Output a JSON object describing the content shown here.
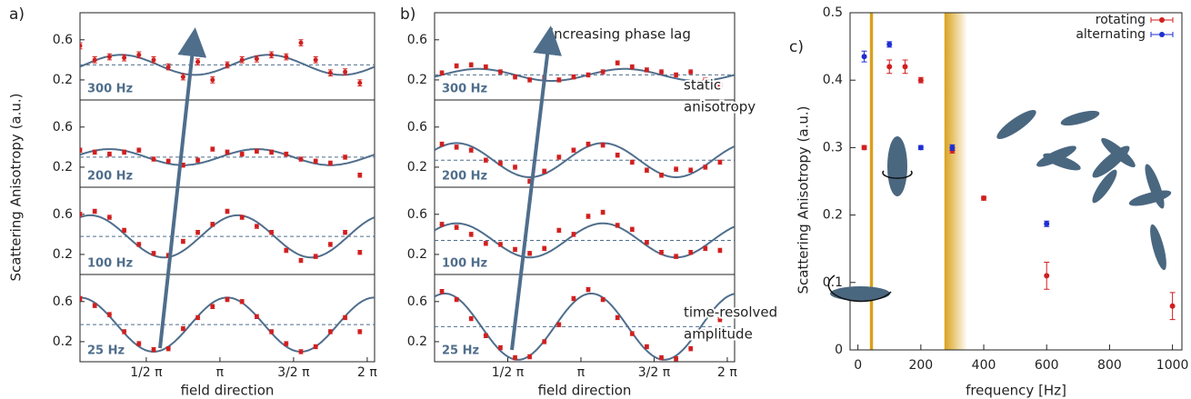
{
  "chart_data": [
    {
      "type": "sine-fit",
      "label": "a)",
      "xlabel": "field direction",
      "ylabel": "Scattering Anisotropy (a.u.)",
      "x": [
        0.05,
        0.15,
        0.25,
        0.35,
        0.45,
        0.55,
        0.65,
        0.75,
        0.85,
        0.95,
        1.05,
        1.15,
        1.25,
        1.35,
        1.45,
        1.55,
        1.65,
        1.75,
        1.85,
        1.95
      ],
      "xlim": [
        0.05,
        2.05
      ],
      "xticks": [
        {
          "value": 0.5,
          "label": "1/2 π"
        },
        {
          "value": 1,
          "label": "π"
        },
        {
          "value": 1.5,
          "label": "3/2 π"
        },
        {
          "value": 2,
          "label": "2 π"
        }
      ],
      "ylim": [
        0,
        0.87
      ],
      "yticks": [
        0.2,
        0.6
      ],
      "color": "#d11f1f",
      "fit_color": "#4f6e8c",
      "fit_period": 1,
      "panels": [
        {
          "name": "300 Hz",
          "values": [
            0.54,
            0.4,
            0.43,
            0.42,
            0.45,
            0.4,
            0.33,
            0.23,
            0.38,
            0.2,
            0.35,
            0.4,
            0.41,
            0.45,
            0.43,
            0.57,
            0.4,
            0.27,
            0.28,
            0.17
          ],
          "yerr": 0.03,
          "fit": {
            "offset": 0.35,
            "amplitude": 0.1,
            "peak": 1.33
          }
        },
        {
          "name": "200 Hz",
          "values": [
            0.37,
            0.35,
            0.33,
            0.35,
            0.37,
            0.28,
            0.26,
            0.22,
            0.27,
            0.38,
            0.35,
            0.33,
            0.36,
            0.35,
            0.33,
            0.28,
            0.26,
            0.24,
            0.3,
            0.12
          ],
          "yerr": 0.02,
          "fit": {
            "offset": 0.3,
            "amplitude": 0.08,
            "peak": 1.25
          }
        },
        {
          "name": "100 Hz",
          "values": [
            0.6,
            0.63,
            0.57,
            0.44,
            0.3,
            0.21,
            0.19,
            0.33,
            0.42,
            0.5,
            0.63,
            0.57,
            0.48,
            0.42,
            0.24,
            0.14,
            0.18,
            0.3,
            0.42,
            0.22
          ],
          "yerr": 0.02,
          "fit": {
            "offset": 0.38,
            "amplitude": 0.21,
            "peak": 1.12
          }
        },
        {
          "name": "25 Hz",
          "values": [
            0.63,
            0.56,
            0.47,
            0.3,
            0.18,
            0.12,
            0.13,
            0.33,
            0.44,
            0.55,
            0.62,
            0.6,
            0.45,
            0.3,
            0.18,
            0.1,
            0.15,
            0.3,
            0.44,
            0.3
          ],
          "yerr": 0.02,
          "fit": {
            "offset": 0.37,
            "amplitude": 0.27,
            "peak": 1.05
          }
        }
      ]
    },
    {
      "type": "sine-fit",
      "label": "b)",
      "xlabel": "field direction",
      "x": [
        0.05,
        0.15,
        0.25,
        0.35,
        0.45,
        0.55,
        0.65,
        0.75,
        0.85,
        0.95,
        1.05,
        1.15,
        1.25,
        1.35,
        1.45,
        1.55,
        1.65,
        1.75,
        1.85,
        1.95
      ],
      "xlim": [
        0,
        2.05
      ],
      "xticks": [
        {
          "value": 0.5,
          "label": "1/2 π"
        },
        {
          "value": 1,
          "label": "π"
        },
        {
          "value": 1.5,
          "label": "3/2 π"
        },
        {
          "value": 2,
          "label": "2 π"
        }
      ],
      "ylim": [
        0,
        0.87
      ],
      "yticks": [
        0.2,
        0.6
      ],
      "color": "#d11f1f",
      "fit_color": "#4f6e8c",
      "fit_period": 1,
      "panels": [
        {
          "name": "300 Hz",
          "values": [
            0.27,
            0.34,
            0.35,
            0.33,
            0.28,
            0.23,
            0.2,
            0.22,
            0.2,
            0.23,
            0.25,
            0.28,
            0.37,
            0.33,
            0.3,
            0.28,
            0.25,
            0.28,
            0.2,
            0.15
          ],
          "yerr": 0.02,
          "fit": {
            "offset": 0.25,
            "amplitude": 0.06,
            "peak": 1.3
          }
        },
        {
          "name": "200 Hz",
          "values": [
            0.43,
            0.4,
            0.37,
            0.27,
            0.24,
            0.2,
            0.06,
            0.16,
            0.3,
            0.37,
            0.43,
            0.42,
            0.32,
            0.25,
            0.17,
            0.12,
            0.18,
            0.17,
            0.2,
            0.25
          ],
          "yerr": 0.02,
          "fit": {
            "offset": 0.27,
            "amplitude": 0.17,
            "peak": 1.15
          }
        },
        {
          "name": "100 Hz",
          "values": [
            0.5,
            0.47,
            0.4,
            0.31,
            0.3,
            0.25,
            0.21,
            0.26,
            0.44,
            0.4,
            0.58,
            0.62,
            0.49,
            0.45,
            0.32,
            0.22,
            0.18,
            0.22,
            0.26,
            0.24
          ],
          "yerr": 0.02,
          "fit": {
            "offset": 0.34,
            "amplitude": 0.17,
            "peak": 1.15
          }
        },
        {
          "name": "25 Hz",
          "values": [
            0.7,
            0.62,
            0.43,
            0.26,
            0.14,
            0.04,
            0.05,
            0.2,
            0.37,
            0.63,
            0.72,
            0.62,
            0.44,
            0.28,
            0.15,
            0.04,
            0.03,
            0.13,
            0.3,
            0.42
          ],
          "yerr": 0.02,
          "fit": {
            "offset": 0.35,
            "amplitude": 0.33,
            "peak": 1.07
          }
        }
      ],
      "annotations": [
        [
          "increasing phase lag"
        ],
        [
          "static",
          "anisotropy"
        ],
        [
          "time-resolved",
          "amplitude"
        ]
      ]
    },
    {
      "type": "scatter",
      "label": "c)",
      "xlabel": "frequency [Hz]",
      "ylabel": "Scattering Anisotropy (a.u.)",
      "xlim": [
        -25,
        1030
      ],
      "xticks": [
        0,
        200,
        400,
        600,
        800,
        1000
      ],
      "ylim": [
        0,
        0.5
      ],
      "yticks": [
        0,
        0.1,
        0.2,
        0.3,
        0.4,
        0.5
      ],
      "highlight_ranges": [
        [
          38,
          48
        ],
        [
          275,
          345
        ]
      ],
      "legend": "top-right",
      "series": [
        {
          "name": "rotating",
          "color": "#d11f1f",
          "x": [
            20,
            100,
            150,
            200,
            300,
            400,
            600,
            1000
          ],
          "values": [
            0.3,
            0.42,
            0.42,
            0.4,
            0.296,
            0.225,
            0.11,
            0.065
          ],
          "yerr": [
            0.003,
            0.01,
            0.01,
            0.004,
            0.004,
            0.003,
            0.02,
            0.02
          ]
        },
        {
          "name": "alternating",
          "color": "#1f2fd1",
          "x": [
            20,
            100,
            200,
            300,
            600
          ],
          "values": [
            0.435,
            0.453,
            0.3,
            0.3,
            0.187
          ],
          "yerr": [
            0.008,
            0.004,
            0.003,
            0.004,
            0.004
          ]
        }
      ]
    }
  ]
}
